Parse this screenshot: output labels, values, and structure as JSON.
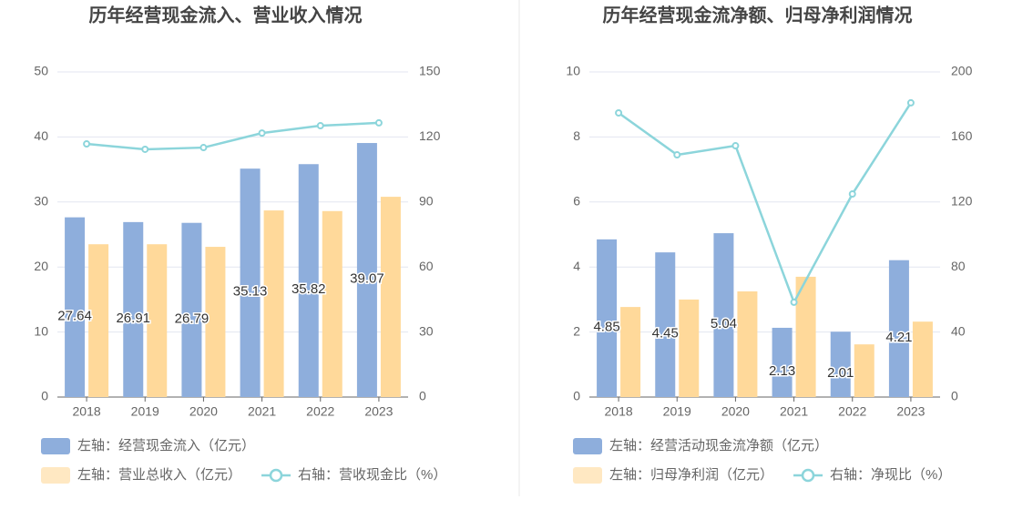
{
  "chart_data": [
    {
      "type": "bar",
      "title": "历年经营现金流入、营业收入情况",
      "categories": [
        "2018",
        "2019",
        "2020",
        "2021",
        "2022",
        "2023"
      ],
      "series": [
        {
          "name": "左轴：经营现金流入（亿元）",
          "color": "#8eaedc",
          "values": [
            27.64,
            26.91,
            26.79,
            35.13,
            35.82,
            39.07
          ],
          "show_labels": true
        },
        {
          "name": "左轴：营业总收入（亿元）",
          "color": "#ffd99a",
          "values": [
            23.5,
            23.5,
            23.1,
            28.7,
            28.6,
            30.8
          ]
        },
        {
          "name": "右轴：营收现金比（%）",
          "color": "#8cd5db",
          "type": "line",
          "axis": "y2",
          "values": [
            116.8,
            114.3,
            115.1,
            121.8,
            125.2,
            126.5
          ]
        }
      ],
      "ylim": [
        0,
        50
      ],
      "yticks": [
        0,
        10,
        20,
        30,
        40,
        50
      ],
      "y2lim": [
        0,
        150
      ],
      "y2ticks": [
        0,
        30,
        60,
        90,
        120,
        150
      ],
      "grid": true
    },
    {
      "type": "bar",
      "title": "历年经营现金流净额、归母净利润情况",
      "categories": [
        "2018",
        "2019",
        "2020",
        "2021",
        "2022",
        "2023"
      ],
      "series": [
        {
          "name": "左轴：经营活动现金流净额（亿元）",
          "color": "#8eaedc",
          "values": [
            4.85,
            4.45,
            5.04,
            2.13,
            2.01,
            4.21
          ],
          "show_labels": true
        },
        {
          "name": "左轴：归母净利润（亿元）",
          "color": "#ffd99a",
          "values": [
            2.77,
            3.0,
            3.25,
            3.7,
            1.62,
            2.32
          ]
        },
        {
          "name": "右轴：净现比（%）",
          "color": "#8cd5db",
          "type": "line",
          "axis": "y2",
          "values": [
            174.8,
            149,
            154.6,
            58.3,
            124.9,
            181
          ]
        }
      ],
      "ylim": [
        0,
        10
      ],
      "yticks": [
        0,
        2,
        4,
        6,
        8,
        10
      ],
      "y2lim": [
        0,
        200
      ],
      "y2ticks": [
        0,
        40,
        80,
        120,
        160,
        200
      ],
      "grid": true
    }
  ]
}
